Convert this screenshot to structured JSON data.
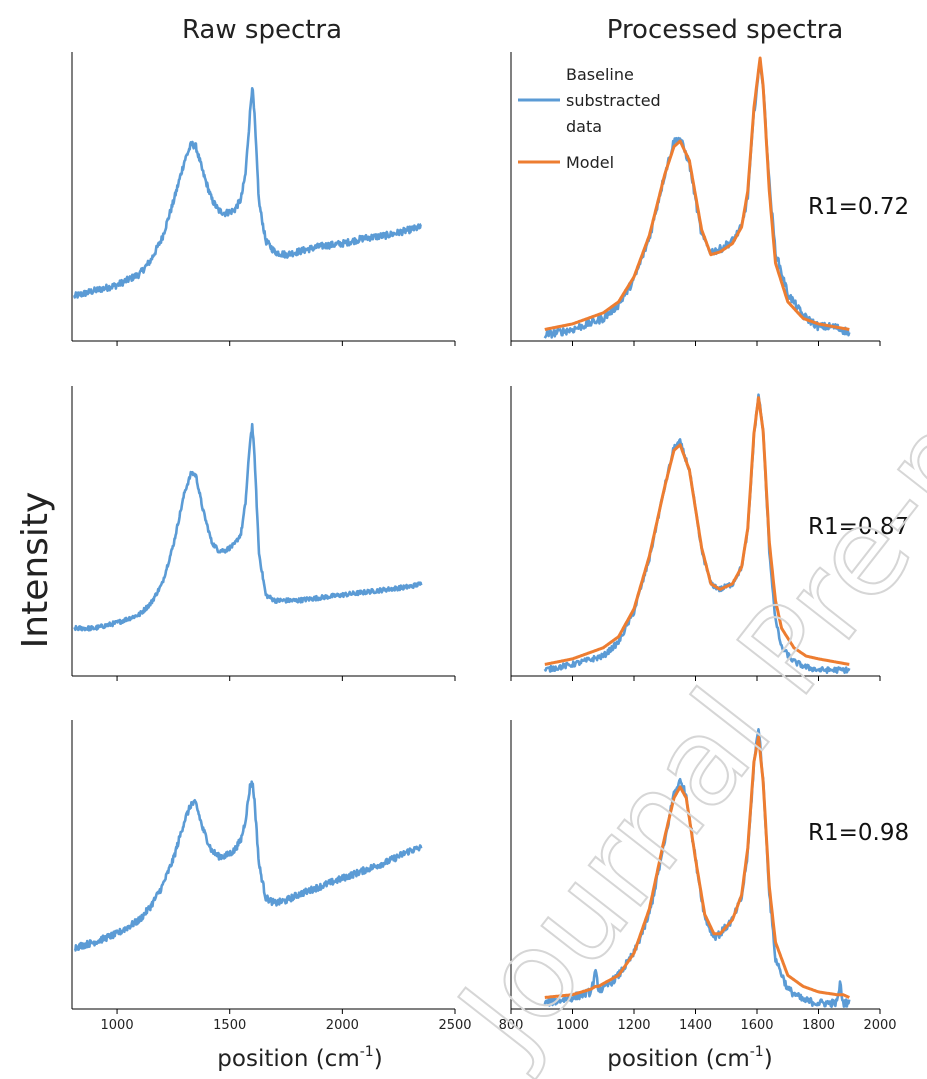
{
  "figure": {
    "col_titles": [
      "Raw spectra",
      "Processed spectra"
    ],
    "ylabel": "Intensity",
    "xlabel_prefix": "position (cm",
    "xlabel_sup": "-1",
    "xlabel_suffix": ")",
    "watermark": "Journal Pre-proof",
    "legend": [
      {
        "lines": [
          "Baseline",
          "substracted",
          "data"
        ],
        "color": "#5b9bd5"
      },
      {
        "lines": [
          "Model"
        ],
        "color": "#ed7d31"
      }
    ]
  },
  "chart_data": [
    {
      "type": "line",
      "panel": "raw-1",
      "xlim": [
        800,
        2500
      ],
      "ylim": [
        0,
        1
      ],
      "series": [
        {
          "color": "#5b9bd5",
          "noise": 0.012,
          "x": [
            810,
            900,
            1000,
            1100,
            1150,
            1200,
            1250,
            1300,
            1330,
            1350,
            1380,
            1420,
            1450,
            1480,
            1520,
            1550,
            1570,
            1590,
            1600,
            1610,
            1630,
            1660,
            1700,
            1750,
            1800,
            1900,
            2000,
            2100,
            2200,
            2300,
            2350
          ],
          "y": [
            0.14,
            0.16,
            0.18,
            0.22,
            0.27,
            0.35,
            0.48,
            0.63,
            0.69,
            0.68,
            0.59,
            0.49,
            0.45,
            0.44,
            0.45,
            0.49,
            0.58,
            0.8,
            0.9,
            0.79,
            0.48,
            0.34,
            0.3,
            0.29,
            0.3,
            0.32,
            0.33,
            0.35,
            0.36,
            0.38,
            0.39
          ]
        }
      ]
    },
    {
      "type": "line",
      "panel": "raw-2",
      "xlim": [
        800,
        2500
      ],
      "ylim": [
        0,
        1
      ],
      "series": [
        {
          "color": "#5b9bd5",
          "noise": 0.008,
          "x": [
            810,
            900,
            1000,
            1100,
            1150,
            1200,
            1250,
            1300,
            1330,
            1350,
            1380,
            1420,
            1450,
            1480,
            1520,
            1550,
            1570,
            1590,
            1600,
            1610,
            1630,
            1660,
            1700,
            1750,
            1800,
            1900,
            2000,
            2100,
            2200,
            2300,
            2350
          ],
          "y": [
            0.15,
            0.15,
            0.17,
            0.2,
            0.24,
            0.31,
            0.45,
            0.64,
            0.71,
            0.7,
            0.58,
            0.46,
            0.43,
            0.43,
            0.45,
            0.49,
            0.6,
            0.82,
            0.88,
            0.77,
            0.42,
            0.27,
            0.25,
            0.25,
            0.25,
            0.26,
            0.27,
            0.28,
            0.29,
            0.3,
            0.31
          ]
        }
      ]
    },
    {
      "type": "line",
      "panel": "raw-3",
      "xlim": [
        800,
        2500
      ],
      "ylim": [
        0,
        1
      ],
      "series": [
        {
          "color": "#5b9bd5",
          "noise": 0.012,
          "x": [
            810,
            900,
            1000,
            1100,
            1150,
            1200,
            1250,
            1300,
            1330,
            1350,
            1380,
            1420,
            1450,
            1480,
            1520,
            1550,
            1570,
            1590,
            1600,
            1610,
            1630,
            1660,
            1700,
            1750,
            1800,
            1900,
            2000,
            2100,
            2200,
            2300,
            2350
          ],
          "y": [
            0.2,
            0.22,
            0.25,
            0.3,
            0.35,
            0.42,
            0.52,
            0.66,
            0.72,
            0.72,
            0.63,
            0.55,
            0.53,
            0.53,
            0.55,
            0.59,
            0.66,
            0.78,
            0.8,
            0.73,
            0.5,
            0.38,
            0.36,
            0.37,
            0.39,
            0.42,
            0.45,
            0.48,
            0.51,
            0.55,
            0.56
          ]
        }
      ]
    },
    {
      "type": "line",
      "panel": "processed-1",
      "xlim": [
        800,
        2000
      ],
      "ylim": [
        0,
        1
      ],
      "annotation": "R1=0.72",
      "series": [
        {
          "name": "Baseline substracted data",
          "color": "#5b9bd5",
          "noise": 0.014,
          "x": [
            910,
            1000,
            1100,
            1150,
            1200,
            1250,
            1300,
            1330,
            1350,
            1380,
            1420,
            1450,
            1480,
            1520,
            1550,
            1570,
            1590,
            1610,
            1620,
            1640,
            1660,
            1700,
            1750,
            1800,
            1850,
            1900
          ],
          "y": [
            0.0,
            0.02,
            0.06,
            0.11,
            0.2,
            0.35,
            0.58,
            0.7,
            0.71,
            0.62,
            0.36,
            0.3,
            0.31,
            0.34,
            0.39,
            0.5,
            0.8,
            0.99,
            0.9,
            0.55,
            0.3,
            0.15,
            0.07,
            0.03,
            0.03,
            0.01
          ]
        },
        {
          "name": "Model",
          "color": "#ed7d31",
          "noise": 0,
          "x": [
            910,
            1000,
            1100,
            1150,
            1200,
            1250,
            1300,
            1330,
            1350,
            1380,
            1420,
            1450,
            1480,
            1520,
            1550,
            1570,
            1590,
            1610,
            1620,
            1640,
            1660,
            1700,
            1750,
            1800,
            1850,
            1900
          ],
          "y": [
            0.02,
            0.04,
            0.08,
            0.12,
            0.21,
            0.36,
            0.58,
            0.68,
            0.7,
            0.63,
            0.38,
            0.29,
            0.3,
            0.33,
            0.39,
            0.52,
            0.82,
            1.0,
            0.9,
            0.52,
            0.26,
            0.12,
            0.06,
            0.04,
            0.03,
            0.02
          ]
        }
      ]
    },
    {
      "type": "line",
      "panel": "processed-2",
      "xlim": [
        800,
        2000
      ],
      "ylim": [
        0,
        1
      ],
      "annotation": "R1=0.87",
      "series": [
        {
          "color": "#5b9bd5",
          "noise": 0.01,
          "x": [
            910,
            1000,
            1100,
            1150,
            1200,
            1250,
            1300,
            1330,
            1350,
            1380,
            1420,
            1450,
            1480,
            1520,
            1550,
            1570,
            1590,
            1605,
            1620,
            1640,
            1660,
            1680,
            1720,
            1760,
            1800,
            1850,
            1900
          ],
          "y": [
            0.0,
            0.02,
            0.05,
            0.1,
            0.21,
            0.4,
            0.66,
            0.8,
            0.82,
            0.72,
            0.43,
            0.31,
            0.29,
            0.31,
            0.37,
            0.5,
            0.84,
            0.99,
            0.86,
            0.43,
            0.18,
            0.08,
            0.03,
            0.01,
            0.0,
            0.0,
            0.0
          ]
        },
        {
          "color": "#ed7d31",
          "noise": 0,
          "x": [
            910,
            1000,
            1100,
            1150,
            1200,
            1250,
            1300,
            1330,
            1350,
            1380,
            1420,
            1450,
            1480,
            1520,
            1550,
            1570,
            1590,
            1605,
            1620,
            1640,
            1660,
            1680,
            1720,
            1760,
            1800,
            1850,
            1900
          ],
          "y": [
            0.02,
            0.04,
            0.08,
            0.12,
            0.22,
            0.41,
            0.66,
            0.79,
            0.81,
            0.72,
            0.44,
            0.31,
            0.29,
            0.31,
            0.37,
            0.51,
            0.85,
            0.98,
            0.86,
            0.46,
            0.25,
            0.15,
            0.08,
            0.05,
            0.04,
            0.03,
            0.02
          ]
        }
      ]
    },
    {
      "type": "line",
      "panel": "processed-3",
      "xlim": [
        800,
        2000
      ],
      "ylim": [
        0,
        1
      ],
      "annotation": "R1=0.98",
      "series": [
        {
          "color": "#5b9bd5",
          "noise": 0.014,
          "x": [
            910,
            1000,
            1060,
            1075,
            1085,
            1100,
            1150,
            1200,
            1250,
            1300,
            1330,
            1350,
            1370,
            1400,
            1430,
            1460,
            1480,
            1520,
            1550,
            1570,
            1590,
            1605,
            1620,
            1640,
            1660,
            1700,
            1750,
            1800,
            1860,
            1870,
            1880,
            1900
          ],
          "y": [
            0.0,
            0.02,
            0.04,
            0.11,
            0.05,
            0.05,
            0.1,
            0.18,
            0.32,
            0.58,
            0.76,
            0.8,
            0.75,
            0.52,
            0.31,
            0.24,
            0.25,
            0.3,
            0.38,
            0.54,
            0.86,
            1.0,
            0.8,
            0.4,
            0.16,
            0.05,
            0.01,
            0.0,
            0.0,
            0.07,
            0.0,
            0.0
          ]
        },
        {
          "color": "#ed7d31",
          "noise": 0,
          "x": [
            910,
            1000,
            1060,
            1075,
            1085,
            1100,
            1150,
            1200,
            1250,
            1300,
            1330,
            1350,
            1370,
            1400,
            1430,
            1460,
            1480,
            1520,
            1550,
            1570,
            1590,
            1605,
            1620,
            1640,
            1660,
            1700,
            1750,
            1800,
            1860,
            1870,
            1880,
            1900
          ],
          "y": [
            0.02,
            0.03,
            0.05,
            0.06,
            0.06,
            0.07,
            0.1,
            0.18,
            0.34,
            0.6,
            0.74,
            0.78,
            0.74,
            0.52,
            0.32,
            0.25,
            0.25,
            0.3,
            0.39,
            0.56,
            0.87,
            0.96,
            0.8,
            0.42,
            0.22,
            0.1,
            0.06,
            0.04,
            0.03,
            0.03,
            0.03,
            0.02
          ]
        }
      ]
    }
  ],
  "axes": {
    "raw_ticks": [
      1000,
      1500,
      2000,
      2500
    ],
    "raw_tick_labels": [
      "1000",
      "1500",
      "2000",
      "2500"
    ],
    "proc_ticks": [
      800,
      1000,
      1200,
      1400,
      1600,
      1800,
      2000
    ],
    "proc_tick_labels": [
      "800",
      "1000",
      "1200",
      "1400",
      "1600",
      "1800",
      "2000"
    ]
  }
}
